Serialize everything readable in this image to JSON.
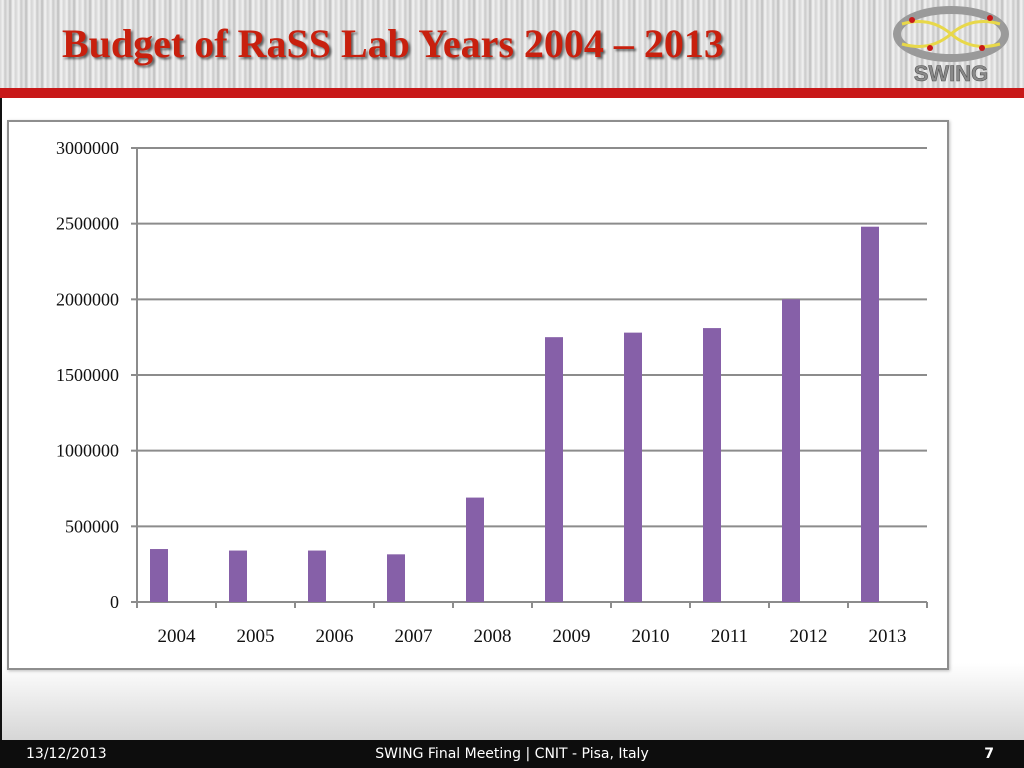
{
  "slide": {
    "title": "Budget of RaSS Lab Years 2004 – 2013",
    "logo_text": "SWING"
  },
  "footer": {
    "date": "13/12/2013",
    "center": "SWING Final Meeting | CNIT - Pisa, Italy",
    "page": "7"
  },
  "colors": {
    "title": "#c8200e",
    "bar": "#8660a8",
    "accent_bar": "#c81818",
    "footer_bg": "#0d0d0d"
  },
  "chart_data": {
    "type": "bar",
    "title": "",
    "xlabel": "",
    "ylabel": "",
    "categories": [
      "2004",
      "2005",
      "2006",
      "2007",
      "2008",
      "2009",
      "2010",
      "2011",
      "2012",
      "2013"
    ],
    "values": [
      350000,
      340000,
      340000,
      315000,
      690000,
      1750000,
      1780000,
      1810000,
      2000000,
      2480000
    ],
    "ylim": [
      0,
      3000000
    ],
    "yticks": [
      0,
      500000,
      1000000,
      1500000,
      2000000,
      2500000,
      3000000
    ],
    "ytick_labels": [
      "0",
      "500000",
      "1000000",
      "1500000",
      "2000000",
      "2500000",
      "3000000"
    ],
    "grid": true,
    "legend": "none"
  }
}
